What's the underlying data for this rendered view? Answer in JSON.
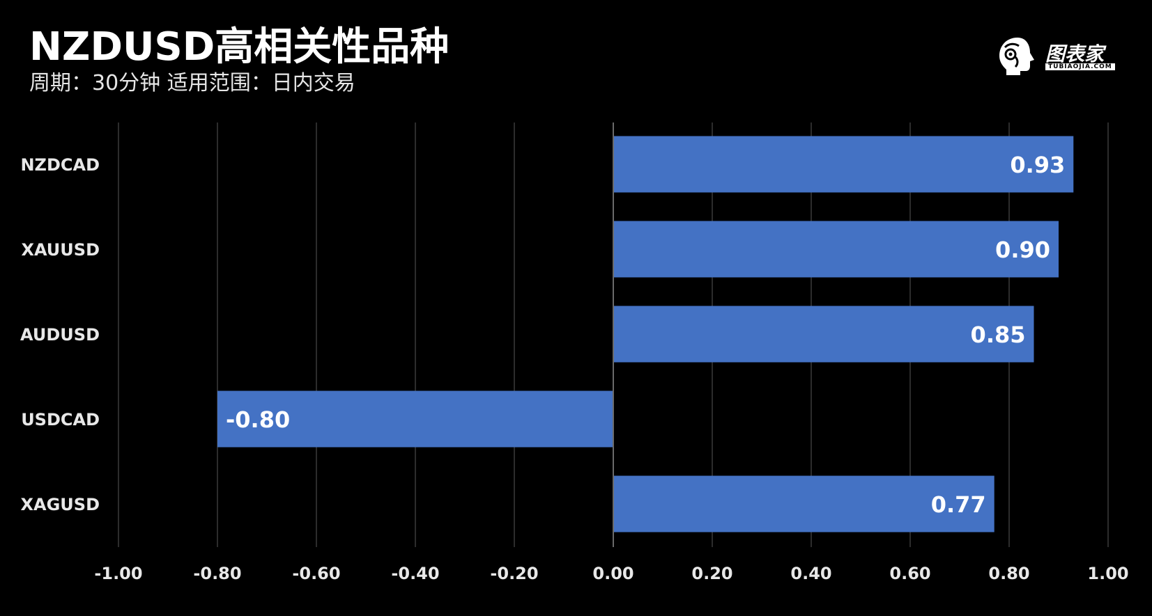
{
  "header": {
    "title": "NZDUSD高相关性品种",
    "subtitle": "周期：30分钟  适用范围：日内交易"
  },
  "logo": {
    "text": "图表家",
    "sub": "TUBIAOJIA.COM"
  },
  "colors": {
    "background": "#000000",
    "bar": "#4472c4",
    "grid": "#3a3a3a",
    "zero_line": "#6a6a6a",
    "text": "#ffffff"
  },
  "chart_data": {
    "type": "bar",
    "orientation": "horizontal",
    "categories": [
      "NZDCAD",
      "XAUUSD",
      "AUDUSD",
      "USDCAD",
      "XAGUSD"
    ],
    "values": [
      0.93,
      0.9,
      0.85,
      -0.8,
      0.77
    ],
    "value_labels": [
      "0.93",
      "0.90",
      "0.85",
      "-0.80",
      "0.77"
    ],
    "xlim": [
      -1.0,
      1.0
    ],
    "xticks": [
      -1.0,
      -0.8,
      -0.6,
      -0.4,
      -0.2,
      0.0,
      0.2,
      0.4,
      0.6,
      0.8,
      1.0
    ],
    "xtick_labels": [
      "-1.00",
      "-0.80",
      "-0.60",
      "-0.40",
      "-0.20",
      "0.00",
      "0.20",
      "0.40",
      "0.60",
      "0.80",
      "1.00"
    ],
    "grid": true,
    "legend": "none"
  }
}
